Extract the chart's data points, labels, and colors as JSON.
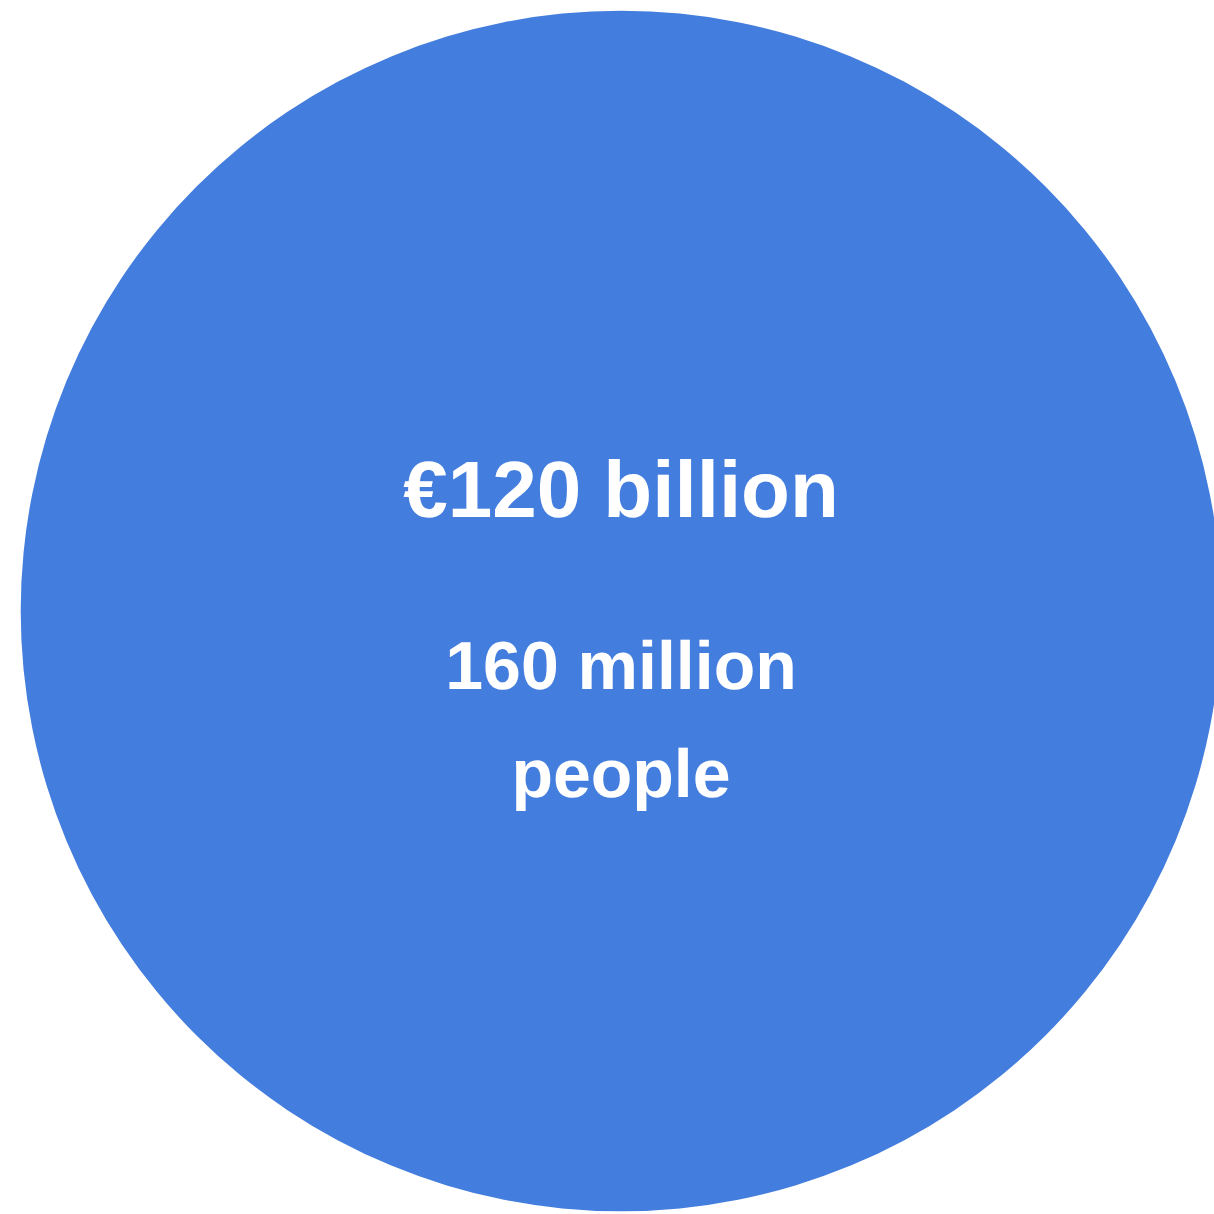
{
  "chart_data": {
    "type": "other",
    "categories": [
      "160 million people"
    ],
    "values": [
      120
    ],
    "value_labels": [
      "€120 billion"
    ],
    "colors": [
      "#437ddd"
    ]
  }
}
